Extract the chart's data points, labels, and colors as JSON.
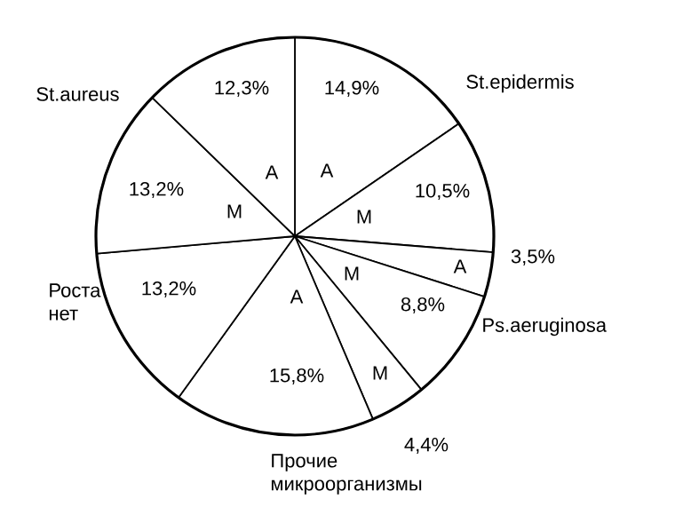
{
  "chart_data": {
    "type": "pie",
    "categories": [
      "А",
      "М",
      "А",
      "М",
      "М",
      "А",
      null,
      "М",
      "А"
    ],
    "values": [
      14.9,
      10.5,
      3.5,
      8.8,
      4.4,
      15.8,
      13.2,
      13.2,
      12.3
    ],
    "value_labels": [
      "14,9%",
      "10,5%",
      "3,5%",
      "8,8%",
      "4,4%",
      "15,8%",
      "13,2%",
      "13,2%",
      "12,3%"
    ],
    "colors": [
      "#ffffff",
      "#ffffff",
      "#ffffff",
      "#ffffff",
      "#ffffff",
      "#ffffff",
      "#ffffff",
      "#ffffff",
      "#ffffff"
    ],
    "annotations": [
      "St.epidermis",
      "Ps.aeruginosa",
      "Прочие микроорганизмы",
      "Роста нет",
      "St.aureus"
    ]
  }
}
